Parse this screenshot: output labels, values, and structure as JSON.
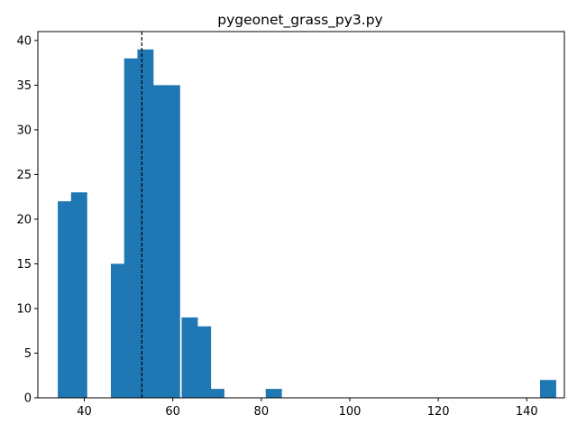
{
  "chart_data": {
    "type": "bar",
    "title": "pygeonet_grass_py3.py",
    "xlabel": "",
    "ylabel": "",
    "xlim": [
      29.5,
      148.5
    ],
    "ylim": [
      0,
      41
    ],
    "xticks": [
      40,
      60,
      80,
      100,
      120,
      140
    ],
    "yticks": [
      0,
      5,
      10,
      15,
      20,
      25,
      30,
      35,
      40
    ],
    "bin_width": 3.65,
    "bins": [
      {
        "x0": 34.0,
        "count": 22
      },
      {
        "x0": 37.0,
        "count": 23
      },
      {
        "x0": 46.0,
        "count": 15
      },
      {
        "x0": 49.0,
        "count": 38
      },
      {
        "x0": 52.0,
        "count": 39
      },
      {
        "x0": 55.0,
        "count": 35
      },
      {
        "x0": 58.0,
        "count": 35
      },
      {
        "x0": 62.0,
        "count": 9
      },
      {
        "x0": 65.0,
        "count": 8
      },
      {
        "x0": 68.0,
        "count": 1
      },
      {
        "x0": 81.0,
        "count": 1
      },
      {
        "x0": 143.0,
        "count": 2
      }
    ],
    "vline": 53.0,
    "bar_color": "#1f77b4",
    "vline_color": "#000000",
    "grid": false
  }
}
